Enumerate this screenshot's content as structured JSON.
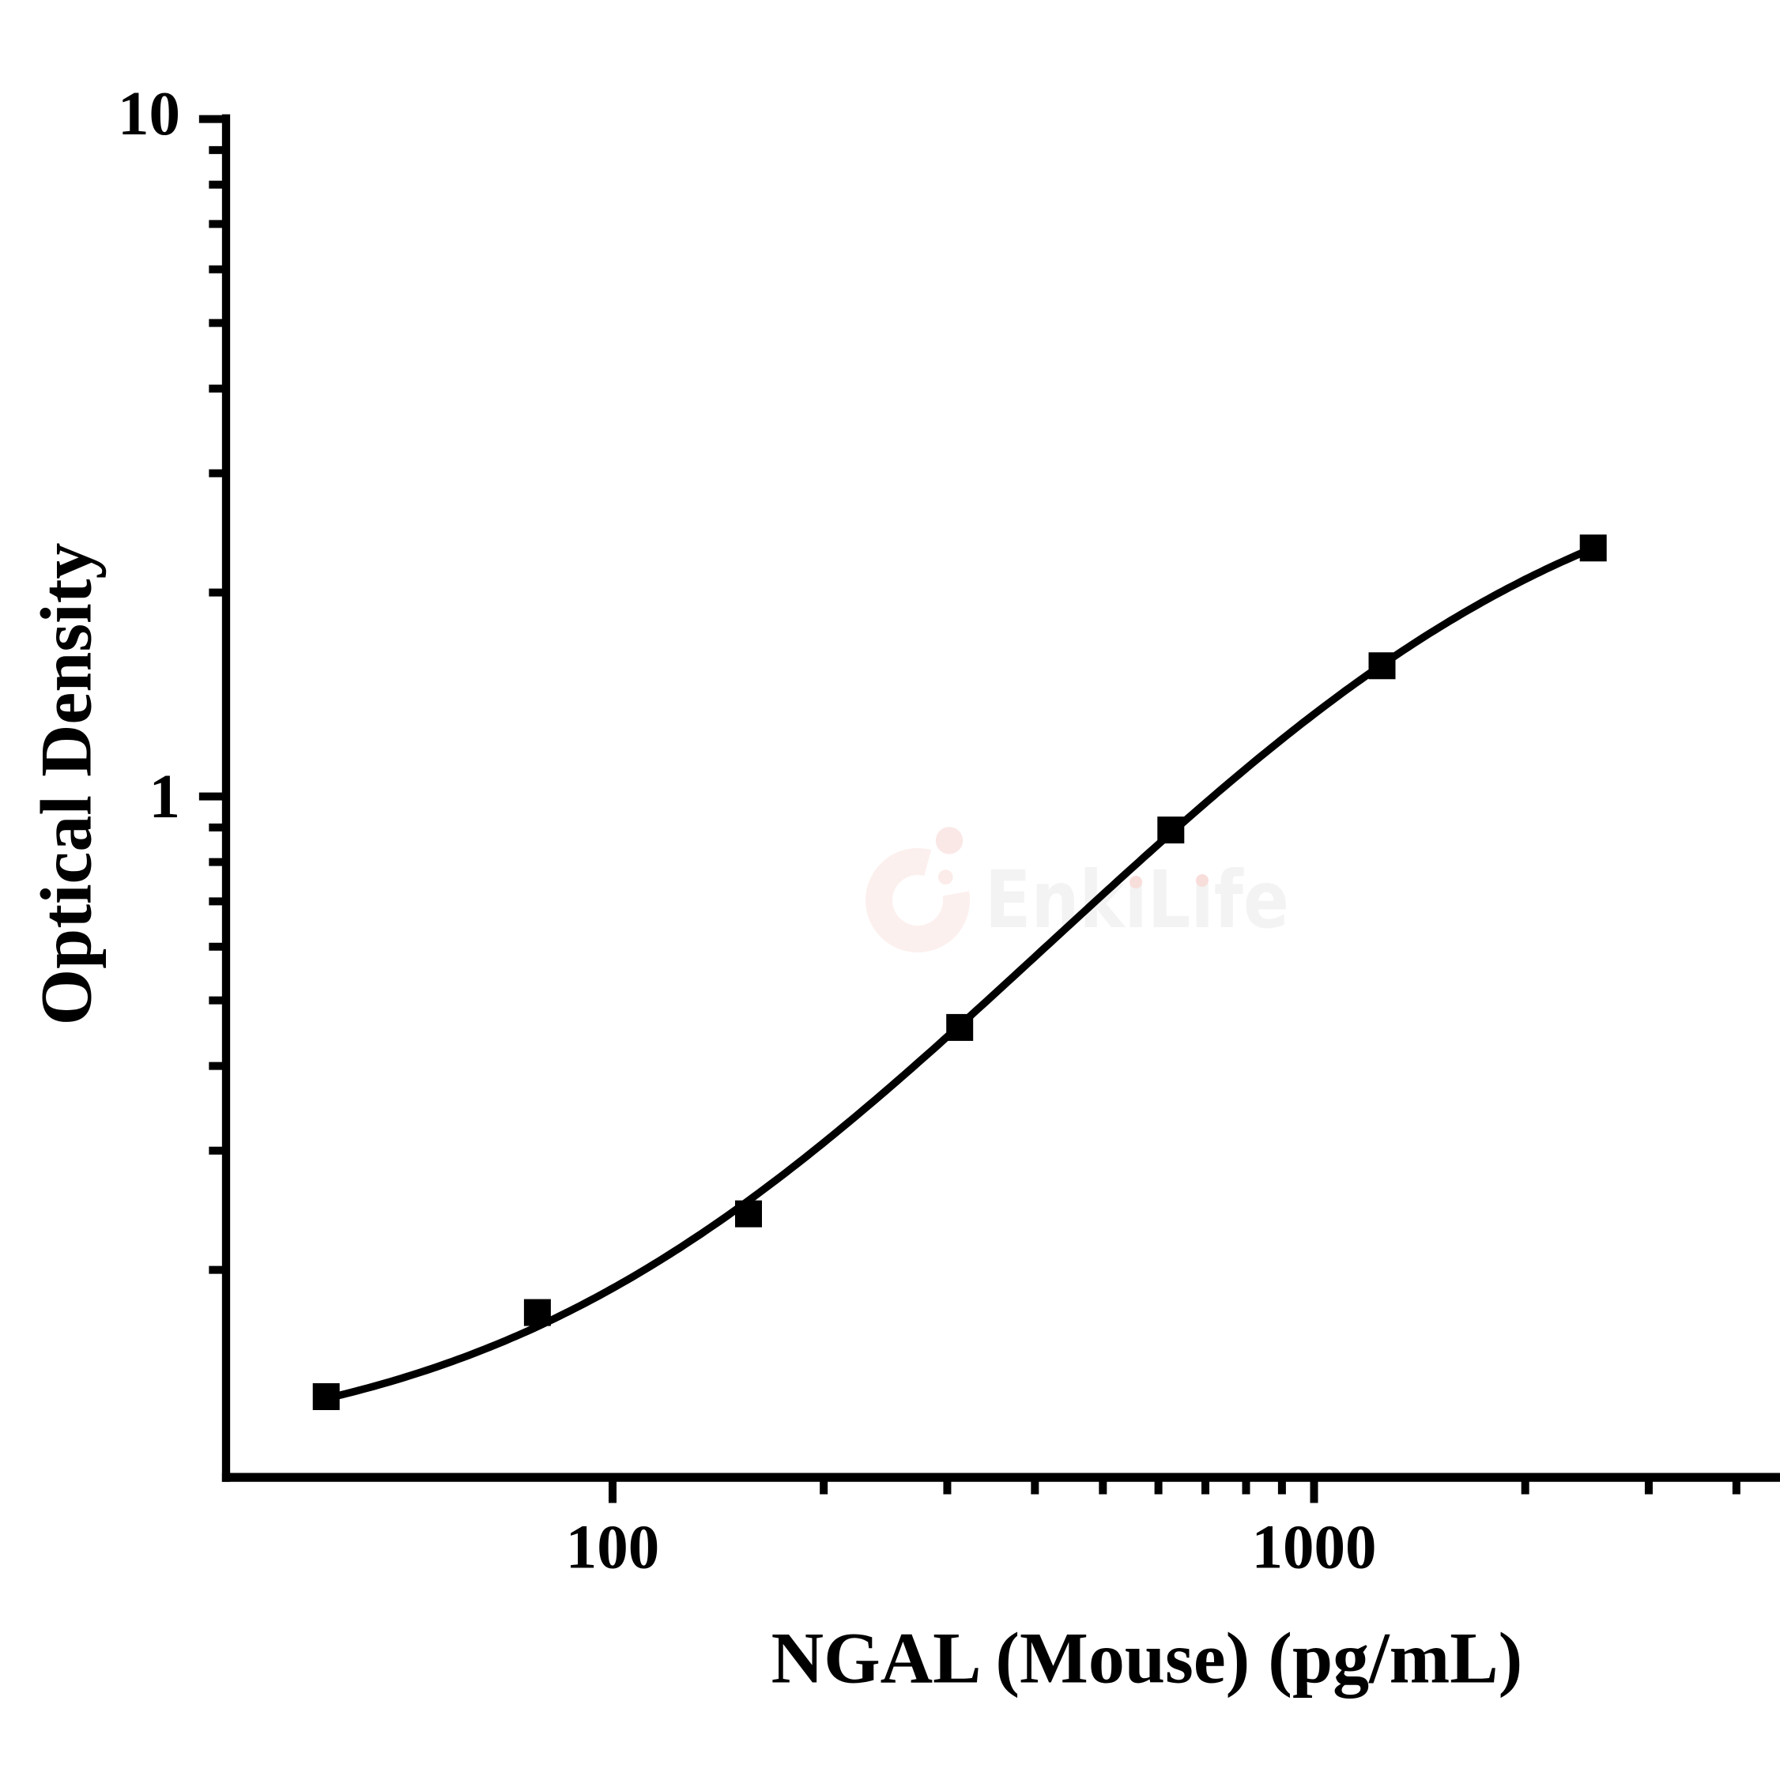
{
  "figure": {
    "background_color": "#ffffff",
    "axis_color": "#000000"
  },
  "chart_data": {
    "type": "line",
    "subtype": "elisa-standard-curve-with-square-markers",
    "title": "",
    "xlabel": "NGAL (Mouse) (pg/mL)",
    "ylabel": "Optical Density",
    "x_scale": "log10",
    "y_scale": "log10",
    "xlim": [
      28.2,
      4620
    ],
    "ylim": [
      0.098,
      10.1
    ],
    "x": [
      39.06,
      78.125,
      156.25,
      312.5,
      625,
      1250,
      2500
    ],
    "series": [
      {
        "name": "standard-curve",
        "values": [
          0.13,
          0.173,
          0.242,
          0.456,
          0.892,
          1.559,
          2.327
        ]
      }
    ],
    "marker": "filled-square",
    "fit_curve": {
      "model": "4PL",
      "A": 0.1059,
      "B": 1.3583,
      "C": 1501.39,
      "D": 3.43599,
      "x_start": 39.06,
      "x_end": 2500
    },
    "line_color": "#000000",
    "marker_color": "#000000",
    "grid": false,
    "legend": null,
    "x_ticks_major": [
      {
        "value": 100,
        "label": "100"
      },
      {
        "value": 1000,
        "label": "1000"
      }
    ],
    "x_ticks_minor": [
      200,
      300,
      400,
      500,
      600,
      700,
      800,
      900,
      2000,
      3000,
      4000
    ],
    "y_ticks_major": [
      {
        "value": 10,
        "label": "10"
      },
      {
        "value": 1,
        "label": "1"
      }
    ],
    "y_ticks_minor": [
      9,
      8,
      7,
      6,
      5,
      4,
      3,
      2,
      0.9,
      0.8,
      0.7,
      0.6,
      0.5,
      0.4,
      0.3,
      0.2
    ]
  },
  "watermark": {
    "text": "EnkiLife",
    "text_color": "#f3f3f3",
    "logo_ring_color": "#fcf0ee",
    "logo_dot_large_color": "#fae8e6",
    "logo_dot_small_color": "#fbebe9",
    "i_dot_color": "#f8dedb"
  }
}
